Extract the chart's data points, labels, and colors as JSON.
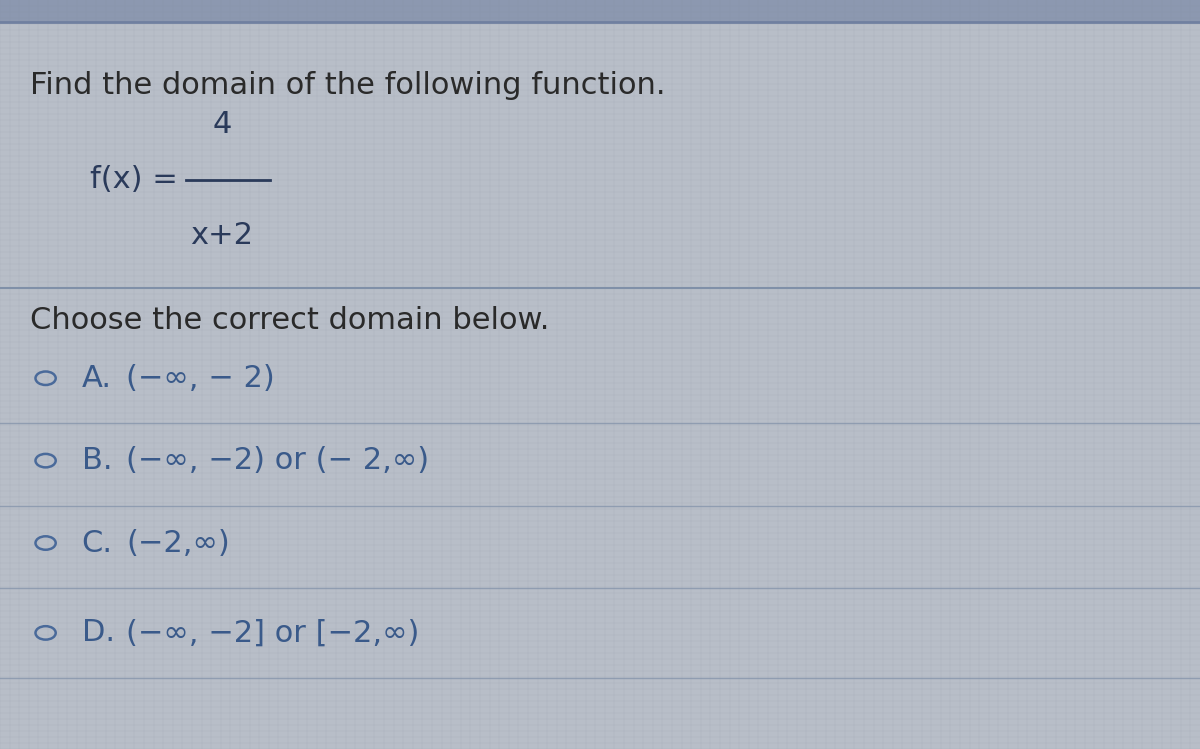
{
  "background_color": "#b8bec8",
  "grid_color_light": "#c4cad4",
  "grid_color_dark": "#a8aeb8",
  "title_text": "Find the domain of the following function.",
  "title_fontsize": 22,
  "title_color": "#2a2a2a",
  "numerator": "4",
  "denominator": "x + 2",
  "section2_label": "Choose the correct domain below.",
  "options": [
    {
      "letter": "A",
      "text": "(−∞, − 2)"
    },
    {
      "letter": "B",
      "text": "(−∞, −2) or (− 2,∞)"
    },
    {
      "letter": "C",
      "text": "(−2,∞)"
    },
    {
      "letter": "D",
      "text": "(−∞, −2] or [−2,∞)"
    }
  ],
  "text_color": "#3a5a8a",
  "option_fontsize": 22,
  "section2_fontsize": 22,
  "divider_color": "#8090a8",
  "circle_color": "#4a6a9a",
  "function_color": "#2a3a5a",
  "top_bar_color": "#7080a0",
  "top_bar_height": 0.013
}
